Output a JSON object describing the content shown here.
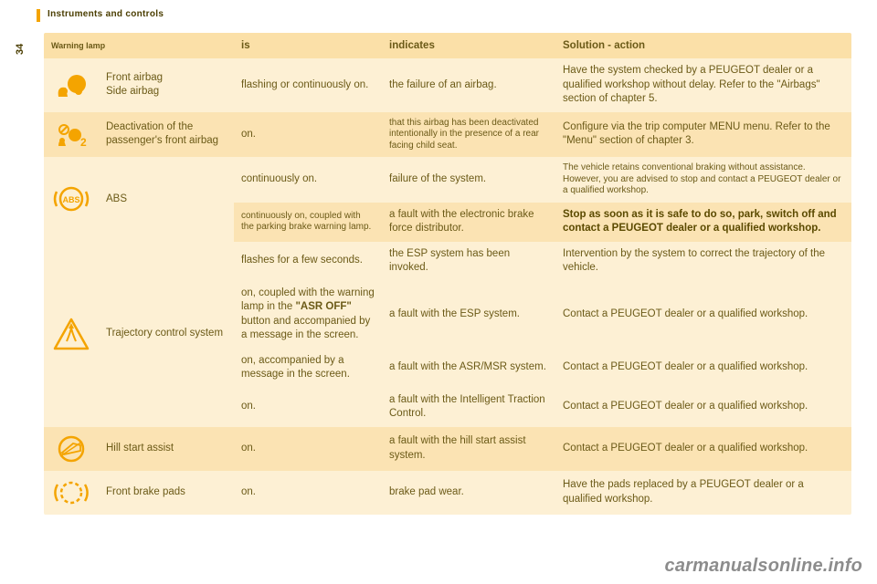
{
  "page": {
    "section_title": "Instruments and controls",
    "page_number": "34",
    "watermark": "carmanualsonline.info"
  },
  "headers": {
    "warning_lamp": "Warning lamp",
    "is": "is",
    "indicates": "indicates",
    "solution": "Solution - action"
  },
  "colors": {
    "shade_a": "#fbe3b3",
    "shade_b": "#fdf0d4",
    "head": "#fbe0a8",
    "text": "#6b5a17",
    "icon": "#f4a400"
  },
  "rows": [
    {
      "icon": "airbag-icon",
      "name": "Front airbag\nSide airbag",
      "is": "flashing or continuously on.",
      "indicates": "the failure of an airbag.",
      "solution": "Have the system checked by a PEUGEOT dealer or a qualified workshop without delay. Refer to the \"Airbags\" section of chapter 5."
    },
    {
      "icon": "airbag-off-icon",
      "name": "Deactivation of the passenger's front airbag",
      "is": "on.",
      "indicates_small": "that this airbag has been deactivated intentionally in the presence of a rear facing child seat.",
      "solution": "Configure via the trip computer MENU menu. Refer to the \"Menu\" section of chapter 3."
    },
    {
      "icon": "abs-icon",
      "name": "ABS",
      "sub": [
        {
          "is": "continuously on.",
          "indicates": "failure of the system.",
          "solution_small": "The vehicle retains conventional braking without assistance. However, you are advised to stop and contact a PEUGEOT dealer or a qualified workshop."
        },
        {
          "is_small": "continuously on, coupled with the parking brake warning lamp.",
          "indicates": "a fault with the electronic brake force distributor.",
          "solution_strong": "Stop as soon as it is safe to do so, park, switch off and contact a PEUGEOT dealer or a qualified workshop."
        }
      ]
    },
    {
      "icon": "esp-icon",
      "name": "Trajectory control system",
      "sub": [
        {
          "is": "flashes for a few seconds.",
          "indicates": "the ESP system has been invoked.",
          "solution": "Intervention by the system to correct the trajectory of the vehicle."
        },
        {
          "is_html": "on, coupled with the warning lamp in the <b>\"ASR OFF\"</b> button and accompanied by a message in the screen.",
          "indicates": "a fault with the ESP system.",
          "solution": "Contact a PEUGEOT dealer or a qualified workshop."
        },
        {
          "is": "on, accompanied by a message in the screen.",
          "indicates": "a fault with the ASR/MSR system.",
          "solution": "Contact a PEUGEOT dealer or a qualified workshop."
        },
        {
          "is": "on.",
          "indicates": "a fault with the Intelligent Traction Control.",
          "solution": "Contact a PEUGEOT dealer or a qualified workshop."
        }
      ]
    },
    {
      "icon": "hill-icon",
      "name": "Hill start assist",
      "is": "on.",
      "indicates": "a fault with the hill start assist system.",
      "solution": "Contact a PEUGEOT dealer or a qualified workshop."
    },
    {
      "icon": "pads-icon",
      "name": "Front brake pads",
      "is": "on.",
      "indicates": "brake pad wear.",
      "solution": "Have the pads replaced by a PEUGEOT dealer or a qualified workshop."
    }
  ]
}
